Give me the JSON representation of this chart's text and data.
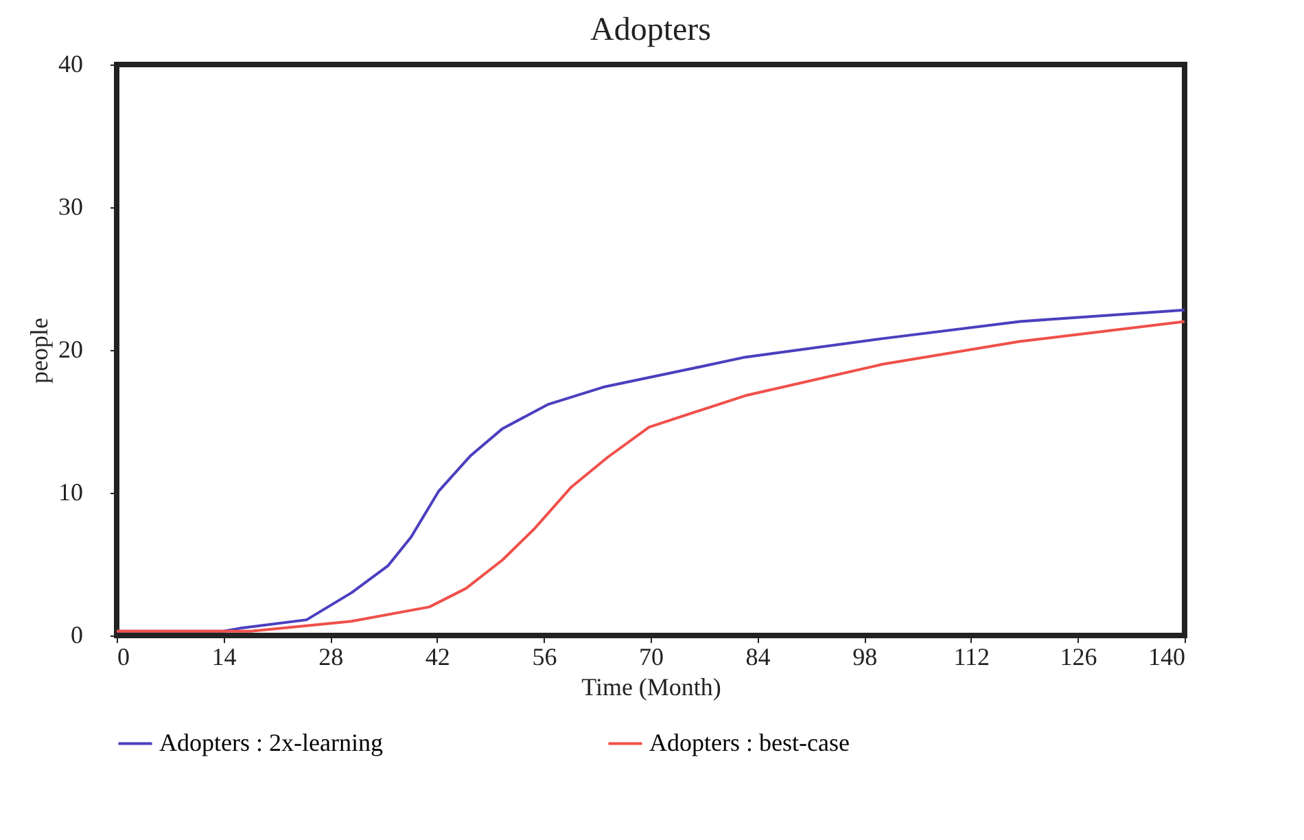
{
  "chart_data": {
    "type": "line",
    "title": "Adopters",
    "xlabel": "Time (Month)",
    "ylabel": "people",
    "xlim": [
      0,
      140
    ],
    "xticks": [
      0,
      14,
      28,
      42,
      56,
      70,
      84,
      98,
      112,
      126,
      140
    ],
    "ylim": [
      0,
      40
    ],
    "yticks": [
      0,
      10,
      20,
      30,
      40
    ],
    "grid": false,
    "legend": "bottom",
    "marker": "none",
    "line_style": "solid",
    "series": [
      {
        "name": "Adopters : 2x-learning",
        "color": "#4b3fbf",
        "x": [
          0,
          14,
          16.1,
          24.9,
          30.8,
          35.6,
          38.6,
          42.2,
          46.4,
          50.6,
          56.6,
          63.8,
          75.4,
          82.4,
          100.4,
          118.4,
          140
        ],
        "values": [
          0.3,
          0.3,
          0.5,
          1.1,
          3.0,
          4.9,
          6.9,
          10.1,
          12.6,
          14.5,
          16.2,
          17.4,
          18.7,
          19.5,
          20.8,
          22.0,
          22.8
        ]
      },
      {
        "name": "Adopters : best-case",
        "color": "#f0504a",
        "x": [
          0,
          17.6,
          30.8,
          41.0,
          45.8,
          50.6,
          54.8,
          59.6,
          64.4,
          69.8,
          82.4,
          100.4,
          118.4,
          140
        ],
        "values": [
          0.3,
          0.3,
          1.0,
          2.0,
          3.3,
          5.3,
          7.5,
          10.4,
          12.5,
          14.6,
          16.8,
          19.0,
          20.6,
          22.0
        ]
      }
    ]
  }
}
